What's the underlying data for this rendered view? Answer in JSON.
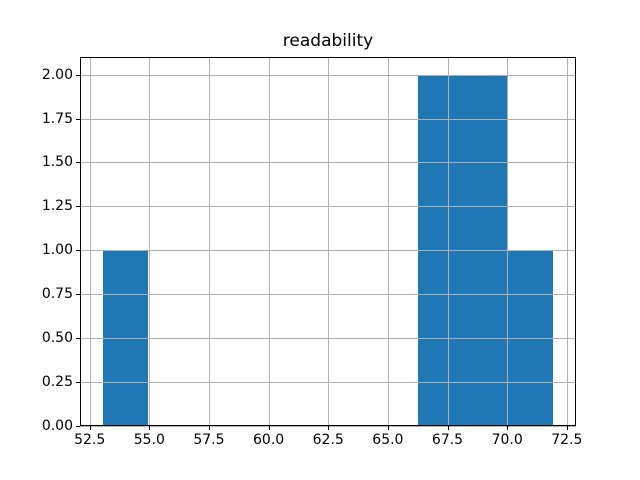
{
  "chart_data": {
    "type": "bar",
    "subtype": "histogram",
    "title": "readability",
    "xlabel": "",
    "ylabel": "",
    "bin_edges": [
      53.04,
      54.93,
      56.82,
      58.71,
      60.6,
      62.49,
      64.38,
      66.27,
      68.16,
      70.05,
      71.94
    ],
    "counts": [
      1,
      0,
      0,
      0,
      0,
      0,
      0,
      2,
      2,
      1
    ],
    "xlim": [
      52.095,
      72.885
    ],
    "ylim": [
      0,
      2.1
    ],
    "xticks": {
      "values": [
        52.5,
        55.0,
        57.5,
        60.0,
        62.5,
        65.0,
        67.5,
        70.0,
        72.5
      ],
      "labels": [
        "52.5",
        "55.0",
        "57.5",
        "60.0",
        "62.5",
        "65.0",
        "67.5",
        "70.0",
        "72.5"
      ]
    },
    "yticks": {
      "values": [
        0.0,
        0.25,
        0.5,
        0.75,
        1.0,
        1.25,
        1.5,
        1.75,
        2.0
      ],
      "labels": [
        "0.00",
        "0.25",
        "0.50",
        "0.75",
        "1.00",
        "1.25",
        "1.50",
        "1.75",
        "2.00"
      ]
    },
    "grid": true,
    "grid_over_bars": true,
    "legend": false,
    "colors": {
      "bar": "#1f77b4",
      "grid": "#b0b0b0",
      "spine": "#000000",
      "text": "#000000",
      "background": "#ffffff"
    }
  }
}
